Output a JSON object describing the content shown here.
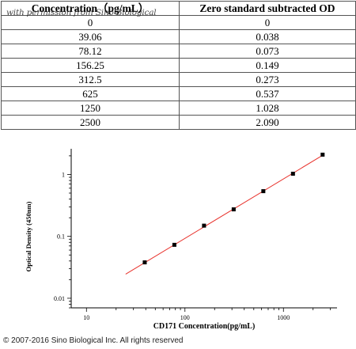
{
  "table": {
    "headers": [
      "Concentration（pg/mL）",
      "Zero standard subtracted OD"
    ],
    "rows": [
      [
        "0",
        "0"
      ],
      [
        "39.06",
        "0.038"
      ],
      [
        "78.12",
        "0.073"
      ],
      [
        "156.25",
        "0.149"
      ],
      [
        "312.5",
        "0.273"
      ],
      [
        "625",
        "0.537"
      ],
      [
        "1250",
        "1.028"
      ],
      [
        "2500",
        "2.090"
      ]
    ]
  },
  "watermark": "with permission from Sino Biological",
  "copyright": "© 2007-2016 Sino Biological Inc. All rights reserved",
  "chart_data": {
    "type": "scatter",
    "xscale": "log",
    "yscale": "log",
    "xlim": [
      7,
      3500
    ],
    "ylim": [
      0.007,
      2.6
    ],
    "xticks": [
      "10",
      "100",
      "1000"
    ],
    "yticks": [
      "1",
      "0.1",
      "0.01"
    ],
    "xlabel": "CD171   Concentration(pg/mL)",
    "ylabel": "Optical Density (450nm)",
    "points": {
      "x": [
        39.06,
        78.12,
        156.25,
        312.5,
        625,
        1250,
        2500
      ],
      "y": [
        0.038,
        0.073,
        0.149,
        0.273,
        0.537,
        1.028,
        2.09
      ]
    },
    "fit_line": {
      "x": [
        25,
        2600
      ],
      "y": [
        0.0245,
        2.12
      ]
    },
    "colors": {
      "points": "#000000",
      "fit_line": "#e8322c",
      "axes": "#000000"
    }
  }
}
